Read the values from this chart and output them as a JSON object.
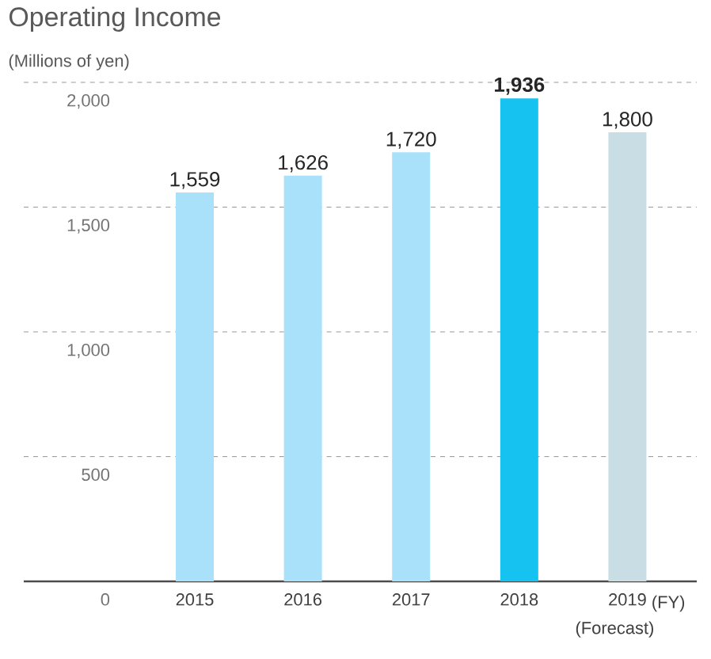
{
  "chart_data": {
    "type": "bar",
    "title": "Operating Income",
    "ylabel": "(Millions of yen)",
    "xlabel": "(FY)",
    "categories": [
      "2015",
      "2016",
      "2017",
      "2018",
      "2019"
    ],
    "values": [
      1559,
      1626,
      1720,
      1936,
      1800
    ],
    "colors": [
      "#a9e0fa",
      "#a9e0fa",
      "#a9e0fa",
      "#16c2f0",
      "#c9dde5"
    ],
    "value_labels": [
      "1,559",
      "1,626",
      "1,720",
      "**1,936**",
      "1,800"
    ],
    "annotations": [
      "(Forecast)"
    ],
    "ylim": [
      0,
      2000
    ],
    "yticks": [
      {
        "value": 0,
        "label": "0"
      },
      {
        "value": 500,
        "label": "500"
      },
      {
        "value": 1000,
        "label": "1,000"
      },
      {
        "value": 1500,
        "label": "1,500"
      },
      {
        "value": 2000,
        "label": "2,000"
      }
    ],
    "grid": "y"
  }
}
